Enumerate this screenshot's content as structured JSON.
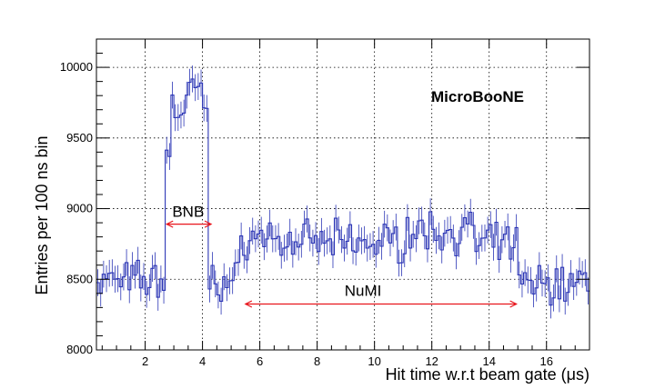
{
  "chart_data": {
    "type": "line",
    "xlabel": "Hit time w.r.t beam gate (μs)",
    "ylabel": "Entries per 100 ns bin",
    "xlim": [
      0.3,
      17.5
    ],
    "ylim": [
      8000,
      10200
    ],
    "x_ticks": [
      2,
      4,
      6,
      8,
      10,
      12,
      14,
      16
    ],
    "y_ticks": [
      8000,
      8500,
      9000,
      9500,
      10000
    ],
    "grid": true,
    "series_color": "#2b35b5",
    "annotation_color": "#e8141b",
    "label": "MicroBooNE",
    "annotations": [
      {
        "text": "BNB",
        "x_start": 2.75,
        "x_end": 4.3,
        "y": 8890,
        "text_x": 3.5,
        "text_y": 8980
      },
      {
        "text": "NuMI",
        "x_start": 5.5,
        "x_end": 14.95,
        "y": 8325,
        "text_x": 9.6,
        "text_y": 8420
      }
    ],
    "segments": [
      {
        "x_start": 0.3,
        "x_end": 2.7,
        "level": 8490
      },
      {
        "x_start": 2.7,
        "x_end": 2.95,
        "level": 9420
      },
      {
        "x_start": 2.95,
        "x_end": 3.4,
        "level": 9700
      },
      {
        "x_start": 3.4,
        "x_end": 4.0,
        "level": 9830
      },
      {
        "x_start": 4.0,
        "x_end": 4.25,
        "level": 9720
      },
      {
        "x_start": 4.25,
        "x_end": 5.3,
        "level": 8480
      },
      {
        "x_start": 5.3,
        "x_end": 6.5,
        "level": 8800
      },
      {
        "x_start": 6.5,
        "x_end": 11.0,
        "level": 8760
      },
      {
        "x_start": 11.0,
        "x_end": 13.5,
        "level": 8840
      },
      {
        "x_start": 13.5,
        "x_end": 15.0,
        "level": 8740
      },
      {
        "x_start": 15.0,
        "x_end": 17.5,
        "level": 8470
      }
    ],
    "noise_amplitude": 110,
    "error_bar": 95,
    "bin_width": 0.1
  }
}
